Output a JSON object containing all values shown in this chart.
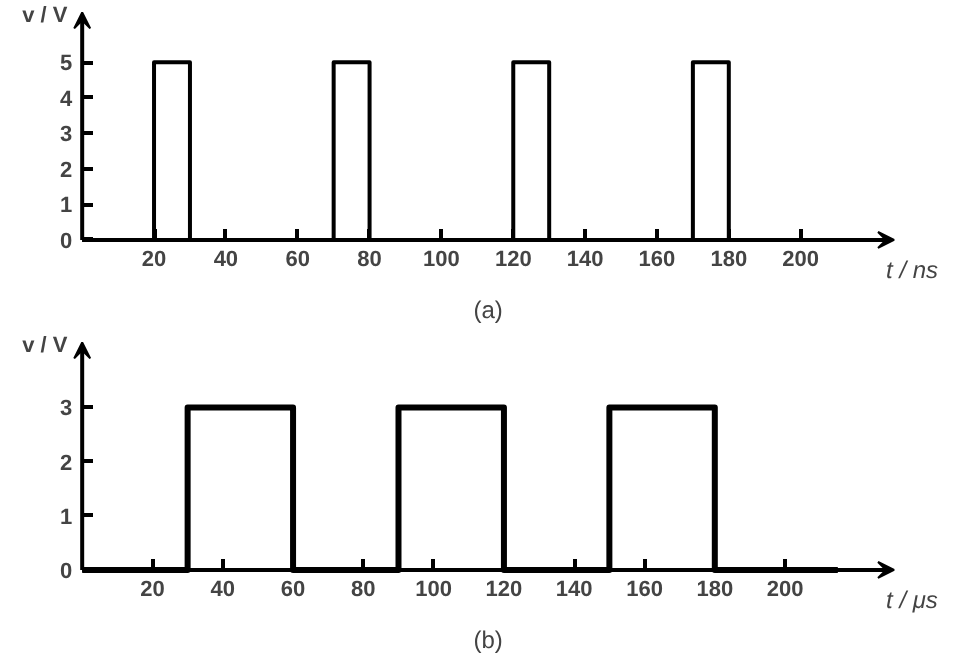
{
  "chart_data": [
    {
      "type": "line",
      "xlabel": "t / ns",
      "ylabel": "v / V",
      "annotations": [
        "(a)"
      ],
      "grid": false,
      "marker": "none",
      "line_style": "solid",
      "x": [
        0,
        20,
        20,
        30,
        30,
        70,
        70,
        80,
        80,
        120,
        120,
        130,
        130,
        170,
        170,
        180,
        180,
        215
      ],
      "series": [
        {
          "color": "#000000",
          "values": [
            0,
            0,
            5,
            5,
            0,
            0,
            5,
            5,
            0,
            0,
            5,
            5,
            0,
            0,
            5,
            5,
            0,
            0
          ]
        }
      ],
      "xlim": [
        0,
        226
      ],
      "ylim": [
        0,
        6.4
      ],
      "xticks": [
        20,
        40,
        60,
        80,
        100,
        120,
        140,
        160,
        180,
        200
      ],
      "yticks": [
        0,
        1,
        2,
        3,
        4,
        5
      ]
    },
    {
      "type": "line",
      "xlabel": "t / μs",
      "ylabel": "v / V",
      "annotations": [
        "(b)"
      ],
      "grid": false,
      "marker": "none",
      "line_style": "solid",
      "x": [
        0,
        30,
        30,
        60,
        60,
        90,
        90,
        120,
        120,
        150,
        150,
        180,
        180,
        215
      ],
      "series": [
        {
          "color": "#000000",
          "values": [
            0,
            0,
            3,
            3,
            0,
            0,
            3,
            3,
            0,
            0,
            3,
            3,
            0,
            0
          ]
        }
      ],
      "xlim": [
        0,
        231
      ],
      "ylim": [
        0,
        4.2
      ],
      "xticks": [
        20,
        40,
        60,
        80,
        100,
        120,
        140,
        160,
        180,
        200
      ],
      "yticks": [
        0,
        1,
        2,
        3
      ]
    }
  ]
}
